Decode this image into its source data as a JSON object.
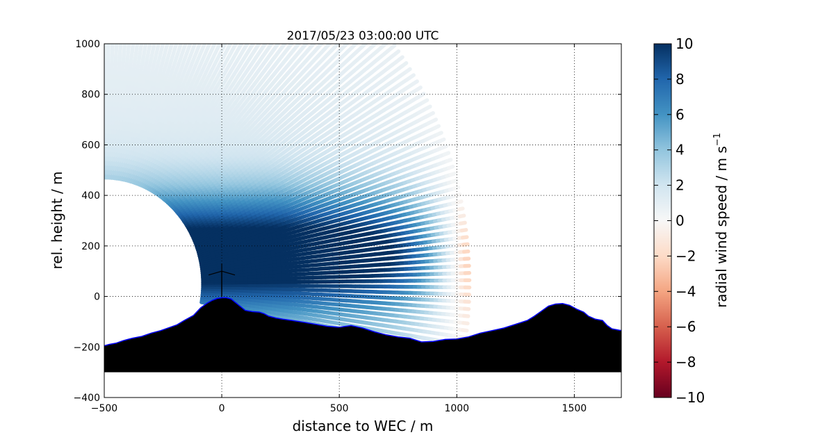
{
  "chart_data": {
    "type": "heatmap",
    "title": "2017/05/23 03:00:00 UTC",
    "xlabel": "distance to WEC / m",
    "ylabel": "rel. height / m",
    "xlim": [
      -500,
      1700
    ],
    "ylim": [
      -400,
      1000
    ],
    "xticks": [
      -500,
      0,
      500,
      1000,
      1500
    ],
    "yticks": [
      -400,
      -200,
      0,
      200,
      400,
      600,
      800,
      1000
    ],
    "grid": true,
    "colorbar": {
      "label": "radial wind speed / m s",
      "label_sup": "−1",
      "range": [
        -10,
        10
      ],
      "ticks": [
        10,
        8,
        6,
        4,
        2,
        0,
        -2,
        -4,
        -6,
        -8,
        -10
      ],
      "colormap": "RdBu",
      "colors": [
        "#67001f",
        "#b2182b",
        "#d6604d",
        "#f4a582",
        "#fddbc7",
        "#f7f7f7",
        "#d1e5f0",
        "#92c5de",
        "#4393c3",
        "#2166ac",
        "#053061"
      ]
    },
    "scan": {
      "origin": [
        -500,
        50
      ],
      "max_range": 1550,
      "elevation_deg": [
        -10,
        90
      ],
      "beams": 96,
      "near_zero_boundary_x": 1000,
      "jet_height": 170
    },
    "terrain": {
      "x": [
        -500,
        -480,
        -450,
        -420,
        -400,
        -380,
        -340,
        -300,
        -260,
        -220,
        -190,
        -160,
        -120,
        -90,
        -60,
        -40,
        -20,
        0,
        20,
        40,
        60,
        80,
        100,
        130,
        160,
        180,
        200,
        230,
        260,
        300,
        350,
        400,
        450,
        500,
        550,
        600,
        650,
        700,
        750,
        800,
        850,
        900,
        950,
        1000,
        1050,
        1100,
        1150,
        1200,
        1250,
        1300,
        1330,
        1360,
        1390,
        1420,
        1450,
        1480,
        1510,
        1540,
        1560,
        1590,
        1620,
        1640,
        1660,
        1700
      ],
      "y": [
        -195,
        -190,
        -185,
        -175,
        -170,
        -165,
        -158,
        -145,
        -135,
        -122,
        -112,
        -95,
        -75,
        -45,
        -25,
        -15,
        -8,
        -5,
        -5,
        -10,
        -25,
        -40,
        -55,
        -60,
        -62,
        -68,
        -78,
        -85,
        -90,
        -95,
        -102,
        -110,
        -118,
        -122,
        -115,
        -125,
        -140,
        -152,
        -160,
        -165,
        -180,
        -178,
        -170,
        -168,
        -160,
        -145,
        -135,
        -125,
        -110,
        -95,
        -78,
        -58,
        -38,
        -30,
        -28,
        -35,
        -50,
        -62,
        -78,
        -90,
        -95,
        -115,
        -128,
        -135
      ],
      "base": -300,
      "color": "#000000",
      "edge_color": "#0000ff"
    },
    "turbine": {
      "x": 0,
      "hub_height": 100,
      "rotor_radius": 60
    }
  }
}
